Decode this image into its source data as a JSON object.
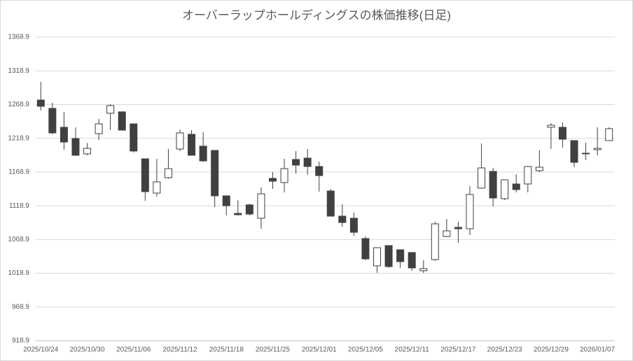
{
  "chart_data": {
    "type": "candlestick",
    "title": "オーバーラップホールディングスの株価推移(日足)",
    "categories": [
      "2025/10/24",
      null,
      null,
      null,
      "2025/10/30",
      null,
      null,
      null,
      "2025/11/06",
      null,
      null,
      null,
      "2025/11/12",
      null,
      null,
      null,
      "2025/11/18",
      null,
      null,
      null,
      "2025/11/25",
      null,
      null,
      null,
      "2025/12/01",
      null,
      null,
      null,
      "2025/12/05",
      null,
      null,
      null,
      "2025/12/11",
      null,
      null,
      null,
      "2025/12/17",
      null,
      null,
      null,
      "2025/12/23",
      null,
      null,
      null,
      "2025/12/29",
      null,
      null,
      null,
      "2026/01/07",
      null
    ],
    "open": [
      1275.6,
      1263.2,
      1235.2,
      1218.6,
      1195.8,
      1225.8,
      1256.0,
      1258.0,
      1240.3,
      1188.5,
      1137.7,
      1160.5,
      1203.0,
      1224.8,
      1207.2,
      1200.9,
      1133.6,
      1107.6,
      1120.2,
      1100.4,
      1159.5,
      1153.3,
      1187.5,
      1189.5,
      1177.1,
      1140.8,
      1103.5,
      1100.4,
      1070.3,
      1029.9,
      1059.9,
      1053.7,
      1049.6,
      1022.6,
      1039.2,
      1073.4,
      1086.9,
      1084.8,
      1145.0,
      1169.8,
      1129.4,
      1151.2,
      1151.2,
      1170.9,
      1235.2,
      1235.2,
      1215.5,
      1196.8,
      1202.0,
      1215.5
    ],
    "high": [
      1302.6,
      1271.5,
      1258.0,
      1235.2,
      1212.0,
      1247.6,
      1269.4,
      1259.0,
      1241.0,
      1189.0,
      1188.5,
      1203.0,
      1232.0,
      1231.0,
      1228.0,
      1201.5,
      1134.0,
      1127.0,
      1122.0,
      1146.0,
      1168.8,
      1188.5,
      1199.9,
      1203.0,
      1184.4,
      1143.9,
      1121.1,
      1108.7,
      1073.4,
      1057.0,
      1060.0,
      1054.0,
      1050.0,
      1038.1,
      1095.2,
      1099.3,
      1095.2,
      1148.1,
      1211.3,
      1175.0,
      1158.0,
      1165.7,
      1178.0,
      1200.9,
      1241.4,
      1242.4,
      1216.0,
      1212.3,
      1235.2,
      1235.2
    ],
    "low": [
      1260.1,
      1225.0,
      1202.0,
      1193.0,
      1193.7,
      1216.5,
      1231.0,
      1231.0,
      1198.0,
      1126.3,
      1132.5,
      1159.0,
      1200.0,
      1195.8,
      1184.0,
      1117.0,
      1104.5,
      1104.5,
      1104.5,
      1084.8,
      1143.9,
      1138.7,
      1166.7,
      1164.7,
      1139.8,
      1103.0,
      1087.9,
      1074.4,
      1038.1,
      1019.5,
      1026.8,
      1026.8,
      1022.6,
      1019.5,
      1037.1,
      1072.4,
      1064.1,
      1075.5,
      1144.0,
      1118.0,
      1127.3,
      1138.7,
      1138.7,
      1168.8,
      1203.0,
      1205.1,
      1176.1,
      1186.4,
      1193.7,
      1215.0
    ],
    "close": [
      1266.3,
      1226.9,
      1213.4,
      1193.7,
      1204.0,
      1240.3,
      1267.3,
      1231.0,
      1200.0,
      1139.8,
      1154.3,
      1174.0,
      1226.9,
      1193.7,
      1185.4,
      1133.6,
      1119.0,
      1105.6,
      1106.6,
      1136.6,
      1155.3,
      1174.0,
      1179.2,
      1177.1,
      1163.6,
      1103.5,
      1094.1,
      1079.6,
      1040.2,
      1056.8,
      1028.8,
      1036.1,
      1026.8,
      1025.7,
      1092.1,
      1081.7,
      1084.8,
      1135.6,
      1175.0,
      1130.4,
      1157.4,
      1142.9,
      1177.1,
      1176.1,
      1238.3,
      1217.5,
      1183.3,
      1195.8,
      1204.0,
      1233.1
    ],
    "up_color": "#ffffff",
    "down_color": "#404040",
    "edge_color": "#404040",
    "ylim": [
      918.9,
      1368.9
    ],
    "yticks": [
      918.9,
      968.9,
      1018.9,
      1068.9,
      1118.9,
      1168.9,
      1218.9,
      1268.9,
      1318.9,
      1368.9
    ],
    "grid": true
  }
}
